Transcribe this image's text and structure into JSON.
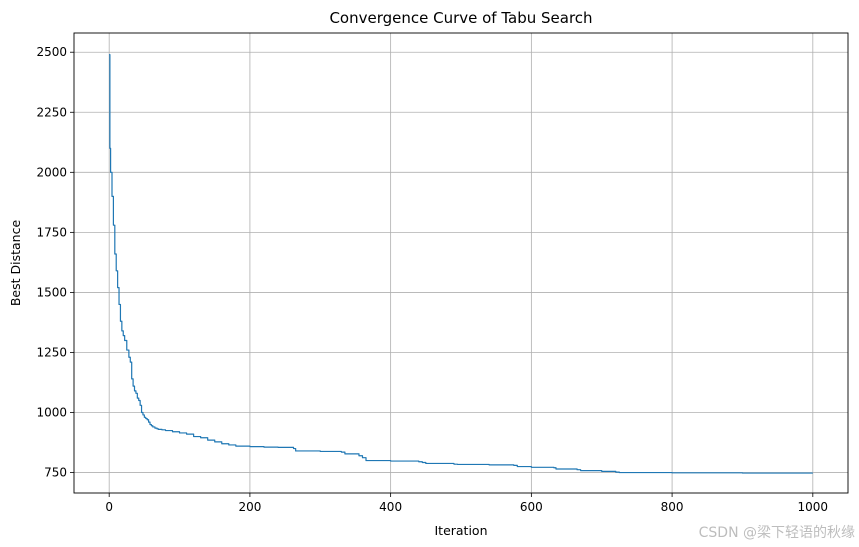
{
  "chart_data": {
    "type": "line",
    "title": "Convergence Curve of Tabu Search",
    "xlabel": "Iteration",
    "ylabel": "Best Distance",
    "xlim": [
      -50,
      1050
    ],
    "ylim": [
      665,
      2580
    ],
    "xticks": [
      0,
      200,
      400,
      600,
      800,
      1000
    ],
    "yticks": [
      750,
      1000,
      1250,
      1500,
      1750,
      2000,
      2250,
      2500
    ],
    "grid": true,
    "line_color": "#1f77b4",
    "series": [
      {
        "x": [
          0,
          1,
          2,
          4,
          6,
          8,
          10,
          12,
          14,
          16,
          18,
          20,
          22,
          25,
          28,
          30,
          32,
          34,
          36,
          38,
          40,
          42,
          44,
          46,
          48,
          50,
          52,
          54,
          56,
          58,
          60,
          62,
          65,
          68,
          70,
          75,
          80,
          90,
          100,
          110,
          120,
          130,
          140,
          150,
          160,
          170,
          180,
          200,
          220,
          240,
          262,
          265,
          300,
          330,
          335,
          355,
          360,
          365,
          400,
          440,
          445,
          450,
          490,
          495,
          540,
          575,
          580,
          600,
          632,
          635,
          665,
          670,
          700,
          720,
          725,
          800,
          900,
          1000
        ],
        "y": [
          2490,
          2100,
          2000,
          1900,
          1780,
          1660,
          1590,
          1520,
          1450,
          1380,
          1340,
          1320,
          1300,
          1260,
          1230,
          1210,
          1140,
          1110,
          1090,
          1080,
          1060,
          1050,
          1030,
          1000,
          990,
          980,
          975,
          970,
          960,
          950,
          945,
          940,
          935,
          932,
          930,
          928,
          925,
          920,
          915,
          910,
          900,
          895,
          885,
          878,
          870,
          865,
          860,
          858,
          856,
          855,
          850,
          840,
          838,
          835,
          828,
          820,
          812,
          800,
          798,
          795,
          792,
          788,
          785,
          784,
          782,
          780,
          775,
          772,
          770,
          765,
          762,
          758,
          755,
          752,
          750,
          749,
          748,
          748
        ]
      }
    ]
  },
  "watermark": "CSDN @梁下轻语的秋缘"
}
